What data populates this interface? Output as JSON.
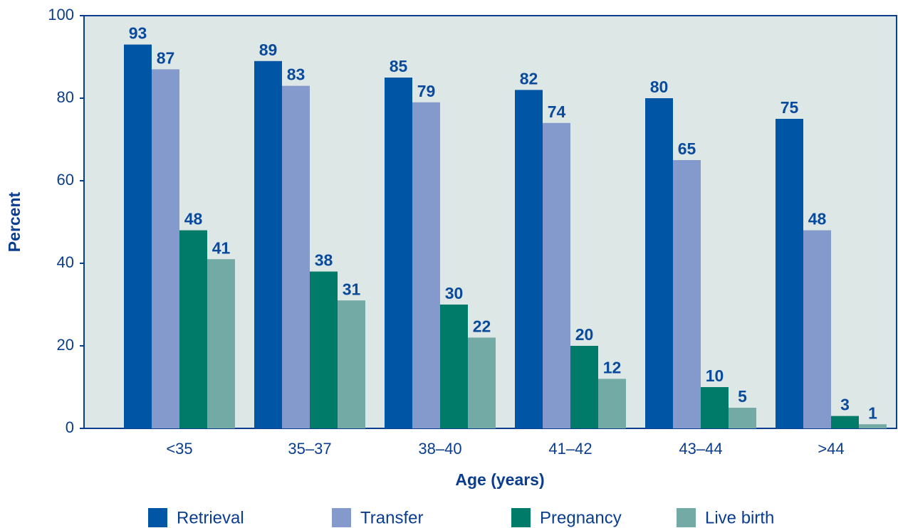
{
  "chart_data": {
    "type": "bar",
    "x_label": "Age (years)",
    "y_label": "Percent",
    "categories": [
      "<35",
      "35–37",
      "38–40",
      "41–42",
      "43–44",
      ">44"
    ],
    "series": [
      {
        "name": "Retrieval",
        "color": "#0055a5",
        "values": [
          93,
          89,
          85,
          82,
          80,
          75
        ]
      },
      {
        "name": "Transfer",
        "color": "#8499cc",
        "values": [
          87,
          83,
          79,
          74,
          65,
          48
        ]
      },
      {
        "name": "Pregnancy",
        "color": "#007a69",
        "values": [
          48,
          38,
          30,
          20,
          10,
          3
        ]
      },
      {
        "name": "Live birth",
        "color": "#74aaa6",
        "values": [
          41,
          31,
          22,
          12,
          5,
          1
        ]
      }
    ],
    "ylim": [
      0,
      100
    ],
    "yticks": [
      0,
      20,
      40,
      60,
      80,
      100
    ],
    "legend": "bottom"
  }
}
